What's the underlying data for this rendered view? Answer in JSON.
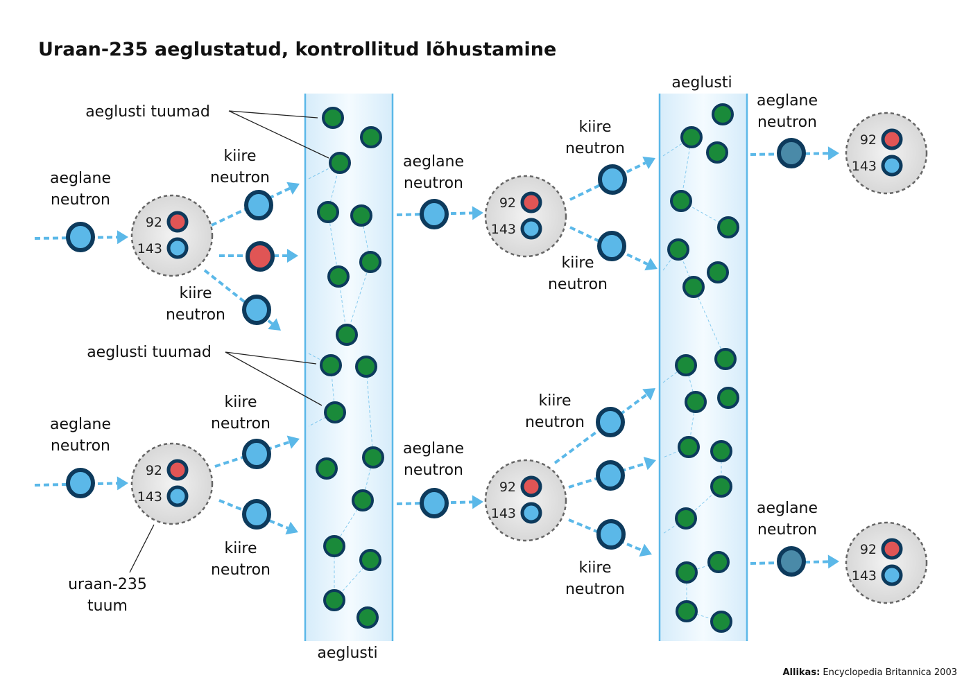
{
  "title": "Uraan-235 aeglustatud, kontrollitud lõhustamine",
  "labels": {
    "slow_neutron": [
      "aeglane",
      "neutron"
    ],
    "fast_neutron": [
      "kiire",
      "neutron"
    ],
    "moderator_nuclei": "aeglusti tuumad",
    "moderator": "aeglusti",
    "uranium_nucleus": [
      "uraan-235",
      "tuum"
    ]
  },
  "nucleus": {
    "protons": "92",
    "neutrons": "143"
  },
  "source": {
    "label": "Allikas:",
    "text": " Encyclopedia Britannica 2003"
  },
  "colors": {
    "neutron_fill": "#5bb8e8",
    "neutron_ring": "#0d3a5c",
    "proton_fill": "#e05555",
    "slowed_neutron_fill": "#4a8aa8",
    "moderator_nucleus_fill": "#1a8a3a",
    "moderator_border": "#5bb8e8",
    "arrow": "#5bb8e8",
    "nucleus_fill": "#e4e4e4"
  }
}
